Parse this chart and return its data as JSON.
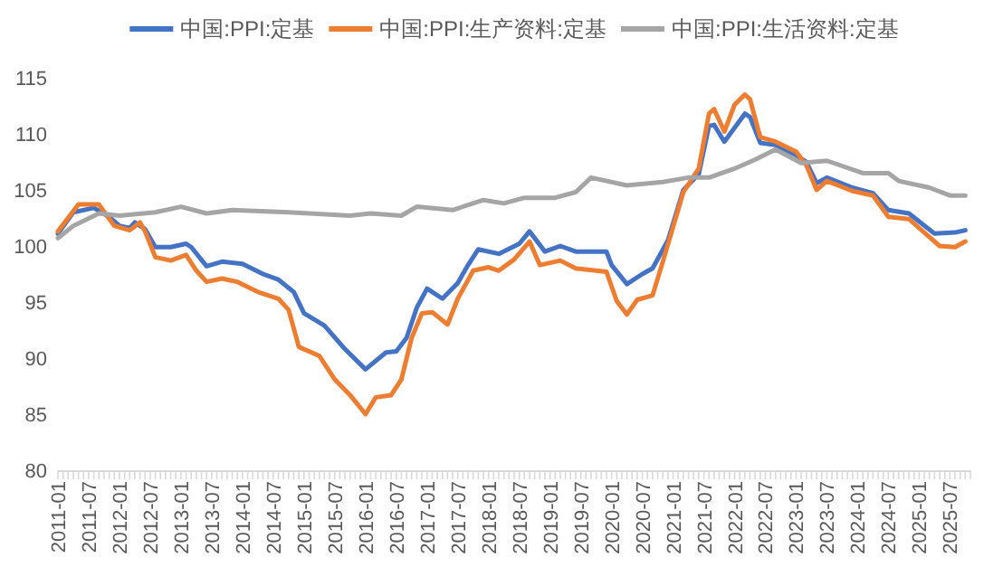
{
  "chart_data": {
    "type": "line",
    "legend": "top",
    "grid": false,
    "ylim": [
      80,
      115
    ],
    "yticks": [
      80,
      85,
      90,
      95,
      100,
      105,
      110,
      115
    ],
    "xlim": [
      "2011-01",
      "2025-11"
    ],
    "xticks": [
      "2011-01",
      "2011-07",
      "2012-01",
      "2012-07",
      "2013-01",
      "2013-07",
      "2014-01",
      "2014-07",
      "2015-01",
      "2015-07",
      "2016-01",
      "2016-07",
      "2017-01",
      "2017-07",
      "2018-01",
      "2018-07",
      "2019-01",
      "2019-07",
      "2020-01",
      "2020-07",
      "2021-01",
      "2021-07",
      "2022-01",
      "2022-07",
      "2023-01",
      "2023-07",
      "2024-01",
      "2024-07",
      "2025-01",
      "2025-07"
    ],
    "series": [
      {
        "name": "中国:PPI:定基",
        "color": "#4472c4",
        "x": [
          "2011-01",
          "2011-04",
          "2011-08",
          "2011-11",
          "2012-01",
          "2012-03",
          "2012-04",
          "2012-06",
          "2012-08",
          "2012-11",
          "2013-02",
          "2013-03",
          "2013-06",
          "2013-09",
          "2014-01",
          "2014-05",
          "2014-08",
          "2014-11",
          "2015-01",
          "2015-05",
          "2015-09",
          "2016-01",
          "2016-05",
          "2016-07",
          "2016-09",
          "2016-11",
          "2017-01",
          "2017-04",
          "2017-07",
          "2017-09",
          "2017-11",
          "2018-03",
          "2018-07",
          "2018-09",
          "2018-12",
          "2019-03",
          "2019-06",
          "2019-12",
          "2020-01",
          "2020-04",
          "2020-07",
          "2020-09",
          "2020-12",
          "2021-03",
          "2021-06",
          "2021-08",
          "2021-09",
          "2021-11",
          "2022-03",
          "2022-04",
          "2022-06",
          "2022-09",
          "2023-01",
          "2023-03",
          "2023-05",
          "2023-07",
          "2023-12",
          "2024-04",
          "2024-07",
          "2024-11",
          "2025-04",
          "2025-08",
          "2025-10"
        ],
        "values": [
          101.1,
          103.0,
          103.4,
          102.6,
          101.8,
          101.6,
          102.1,
          101.5,
          99.9,
          99.9,
          100.2,
          99.9,
          98.2,
          98.6,
          98.4,
          97.5,
          97.0,
          95.9,
          94.0,
          92.9,
          90.8,
          89.0,
          90.5,
          90.6,
          91.8,
          94.5,
          96.2,
          95.3,
          96.7,
          98.3,
          99.7,
          99.3,
          100.2,
          101.3,
          99.5,
          100.0,
          99.5,
          99.5,
          98.3,
          96.6,
          97.5,
          98.0,
          100.5,
          105.0,
          106.4,
          110.7,
          110.8,
          109.3,
          111.8,
          111.5,
          109.2,
          109.0,
          108.1,
          107.5,
          105.6,
          106.1,
          105.2,
          104.7,
          103.2,
          102.9,
          101.1,
          101.2,
          101.4
        ]
      },
      {
        "name": "中国:PPI:生产资料:定基",
        "color": "#ed7d31",
        "x": [
          "2011-01",
          "2011-05",
          "2011-09",
          "2011-12",
          "2012-03",
          "2012-05",
          "2012-06",
          "2012-08",
          "2012-11",
          "2013-02",
          "2013-04",
          "2013-06",
          "2013-09",
          "2013-12",
          "2014-04",
          "2014-08",
          "2014-10",
          "2014-12",
          "2015-04",
          "2015-07",
          "2015-10",
          "2016-01",
          "2016-03",
          "2016-06",
          "2016-08",
          "2016-10",
          "2016-12",
          "2017-02",
          "2017-05",
          "2017-07",
          "2017-10",
          "2018-01",
          "2018-03",
          "2018-06",
          "2018-09",
          "2018-11",
          "2019-03",
          "2019-06",
          "2019-12",
          "2020-02",
          "2020-04",
          "2020-06",
          "2020-09",
          "2020-11",
          "2021-03",
          "2021-06",
          "2021-08",
          "2021-09",
          "2021-11",
          "2022-01",
          "2022-03",
          "2022-04",
          "2022-06",
          "2022-09",
          "2023-01",
          "2023-03",
          "2023-05",
          "2023-07",
          "2023-12",
          "2024-04",
          "2024-07",
          "2024-11",
          "2025-05",
          "2025-08",
          "2025-10"
        ],
        "values": [
          101.3,
          103.7,
          103.7,
          101.8,
          101.4,
          102.1,
          101.3,
          99.0,
          98.7,
          99.2,
          97.8,
          96.8,
          97.1,
          96.8,
          95.9,
          95.3,
          94.3,
          91.0,
          90.2,
          88.1,
          86.7,
          85.0,
          86.5,
          86.7,
          88.1,
          91.8,
          94.0,
          94.1,
          93.0,
          95.3,
          97.8,
          98.1,
          97.8,
          98.8,
          100.4,
          98.3,
          98.7,
          98.0,
          97.7,
          95.1,
          93.9,
          95.2,
          95.6,
          98.6,
          104.8,
          106.9,
          111.8,
          112.2,
          110.2,
          112.6,
          113.5,
          113.1,
          109.7,
          109.3,
          108.4,
          107.2,
          105.0,
          105.8,
          104.9,
          104.5,
          102.6,
          102.4,
          100.0,
          99.9,
          100.4
        ]
      },
      {
        "name": "中国:PPI:生活资料:定基",
        "color": "#a5a5a5",
        "x": [
          "2011-01",
          "2011-04",
          "2011-09",
          "2012-01",
          "2012-08",
          "2013-01",
          "2013-06",
          "2013-11",
          "2014-10",
          "2015-10",
          "2016-02",
          "2016-08",
          "2016-11",
          "2017-06",
          "2017-12",
          "2018-04",
          "2018-08",
          "2019-02",
          "2019-06",
          "2019-09",
          "2020-04",
          "2020-11",
          "2021-04",
          "2021-08",
          "2022-01",
          "2022-05",
          "2022-09",
          "2023-02",
          "2023-07",
          "2024-02",
          "2024-07",
          "2024-09",
          "2025-03",
          "2025-07",
          "2025-10"
        ],
        "values": [
          100.7,
          101.8,
          102.9,
          102.7,
          103.0,
          103.5,
          102.9,
          103.2,
          103.0,
          102.7,
          102.9,
          102.7,
          103.5,
          103.2,
          104.1,
          103.8,
          104.3,
          104.3,
          104.8,
          106.1,
          105.4,
          105.7,
          106.1,
          106.1,
          106.9,
          107.7,
          108.6,
          107.4,
          107.6,
          106.5,
          106.5,
          105.8,
          105.2,
          104.5,
          104.5
        ]
      }
    ]
  }
}
